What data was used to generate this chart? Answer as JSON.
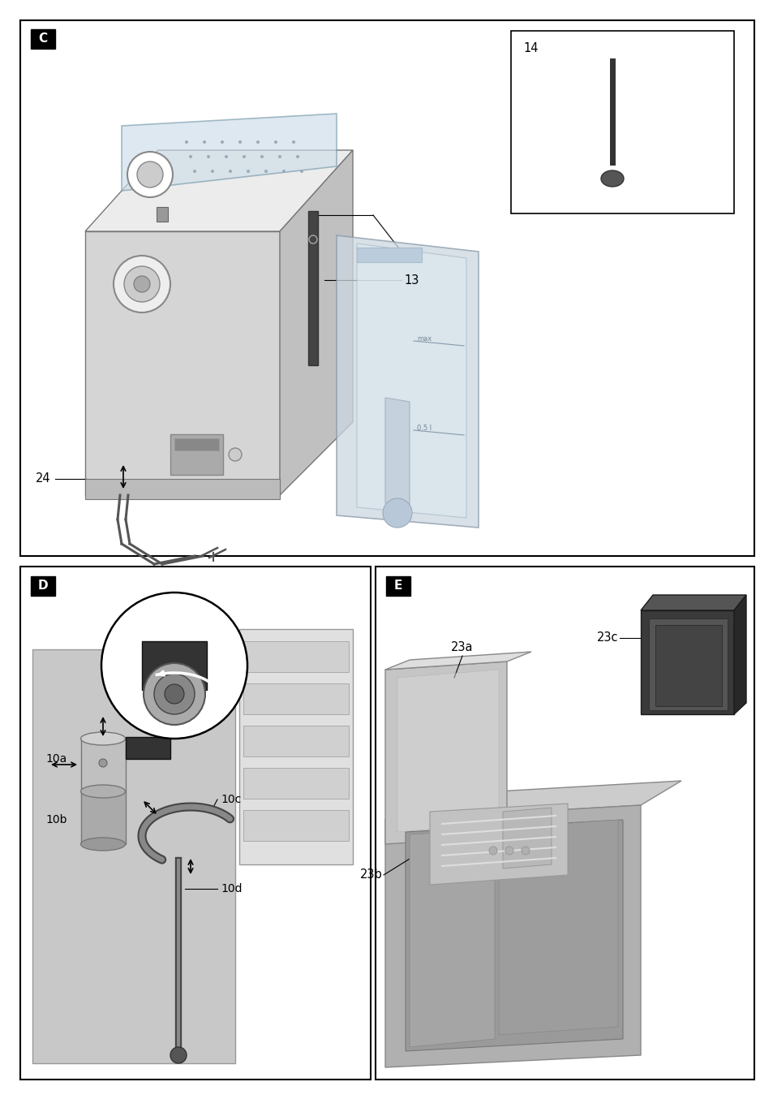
{
  "bg_color": "#ffffff",
  "border_color": "#000000",
  "label_C": "C",
  "label_D": "D",
  "label_E": "E",
  "label_14": "14",
  "label_13": "13",
  "label_24": "24",
  "label_10a": "10a",
  "label_10b": "10b",
  "label_10c": "10c",
  "label_10d": "10d",
  "label_23a": "23a",
  "label_23b": "23b",
  "label_23c": "23c"
}
